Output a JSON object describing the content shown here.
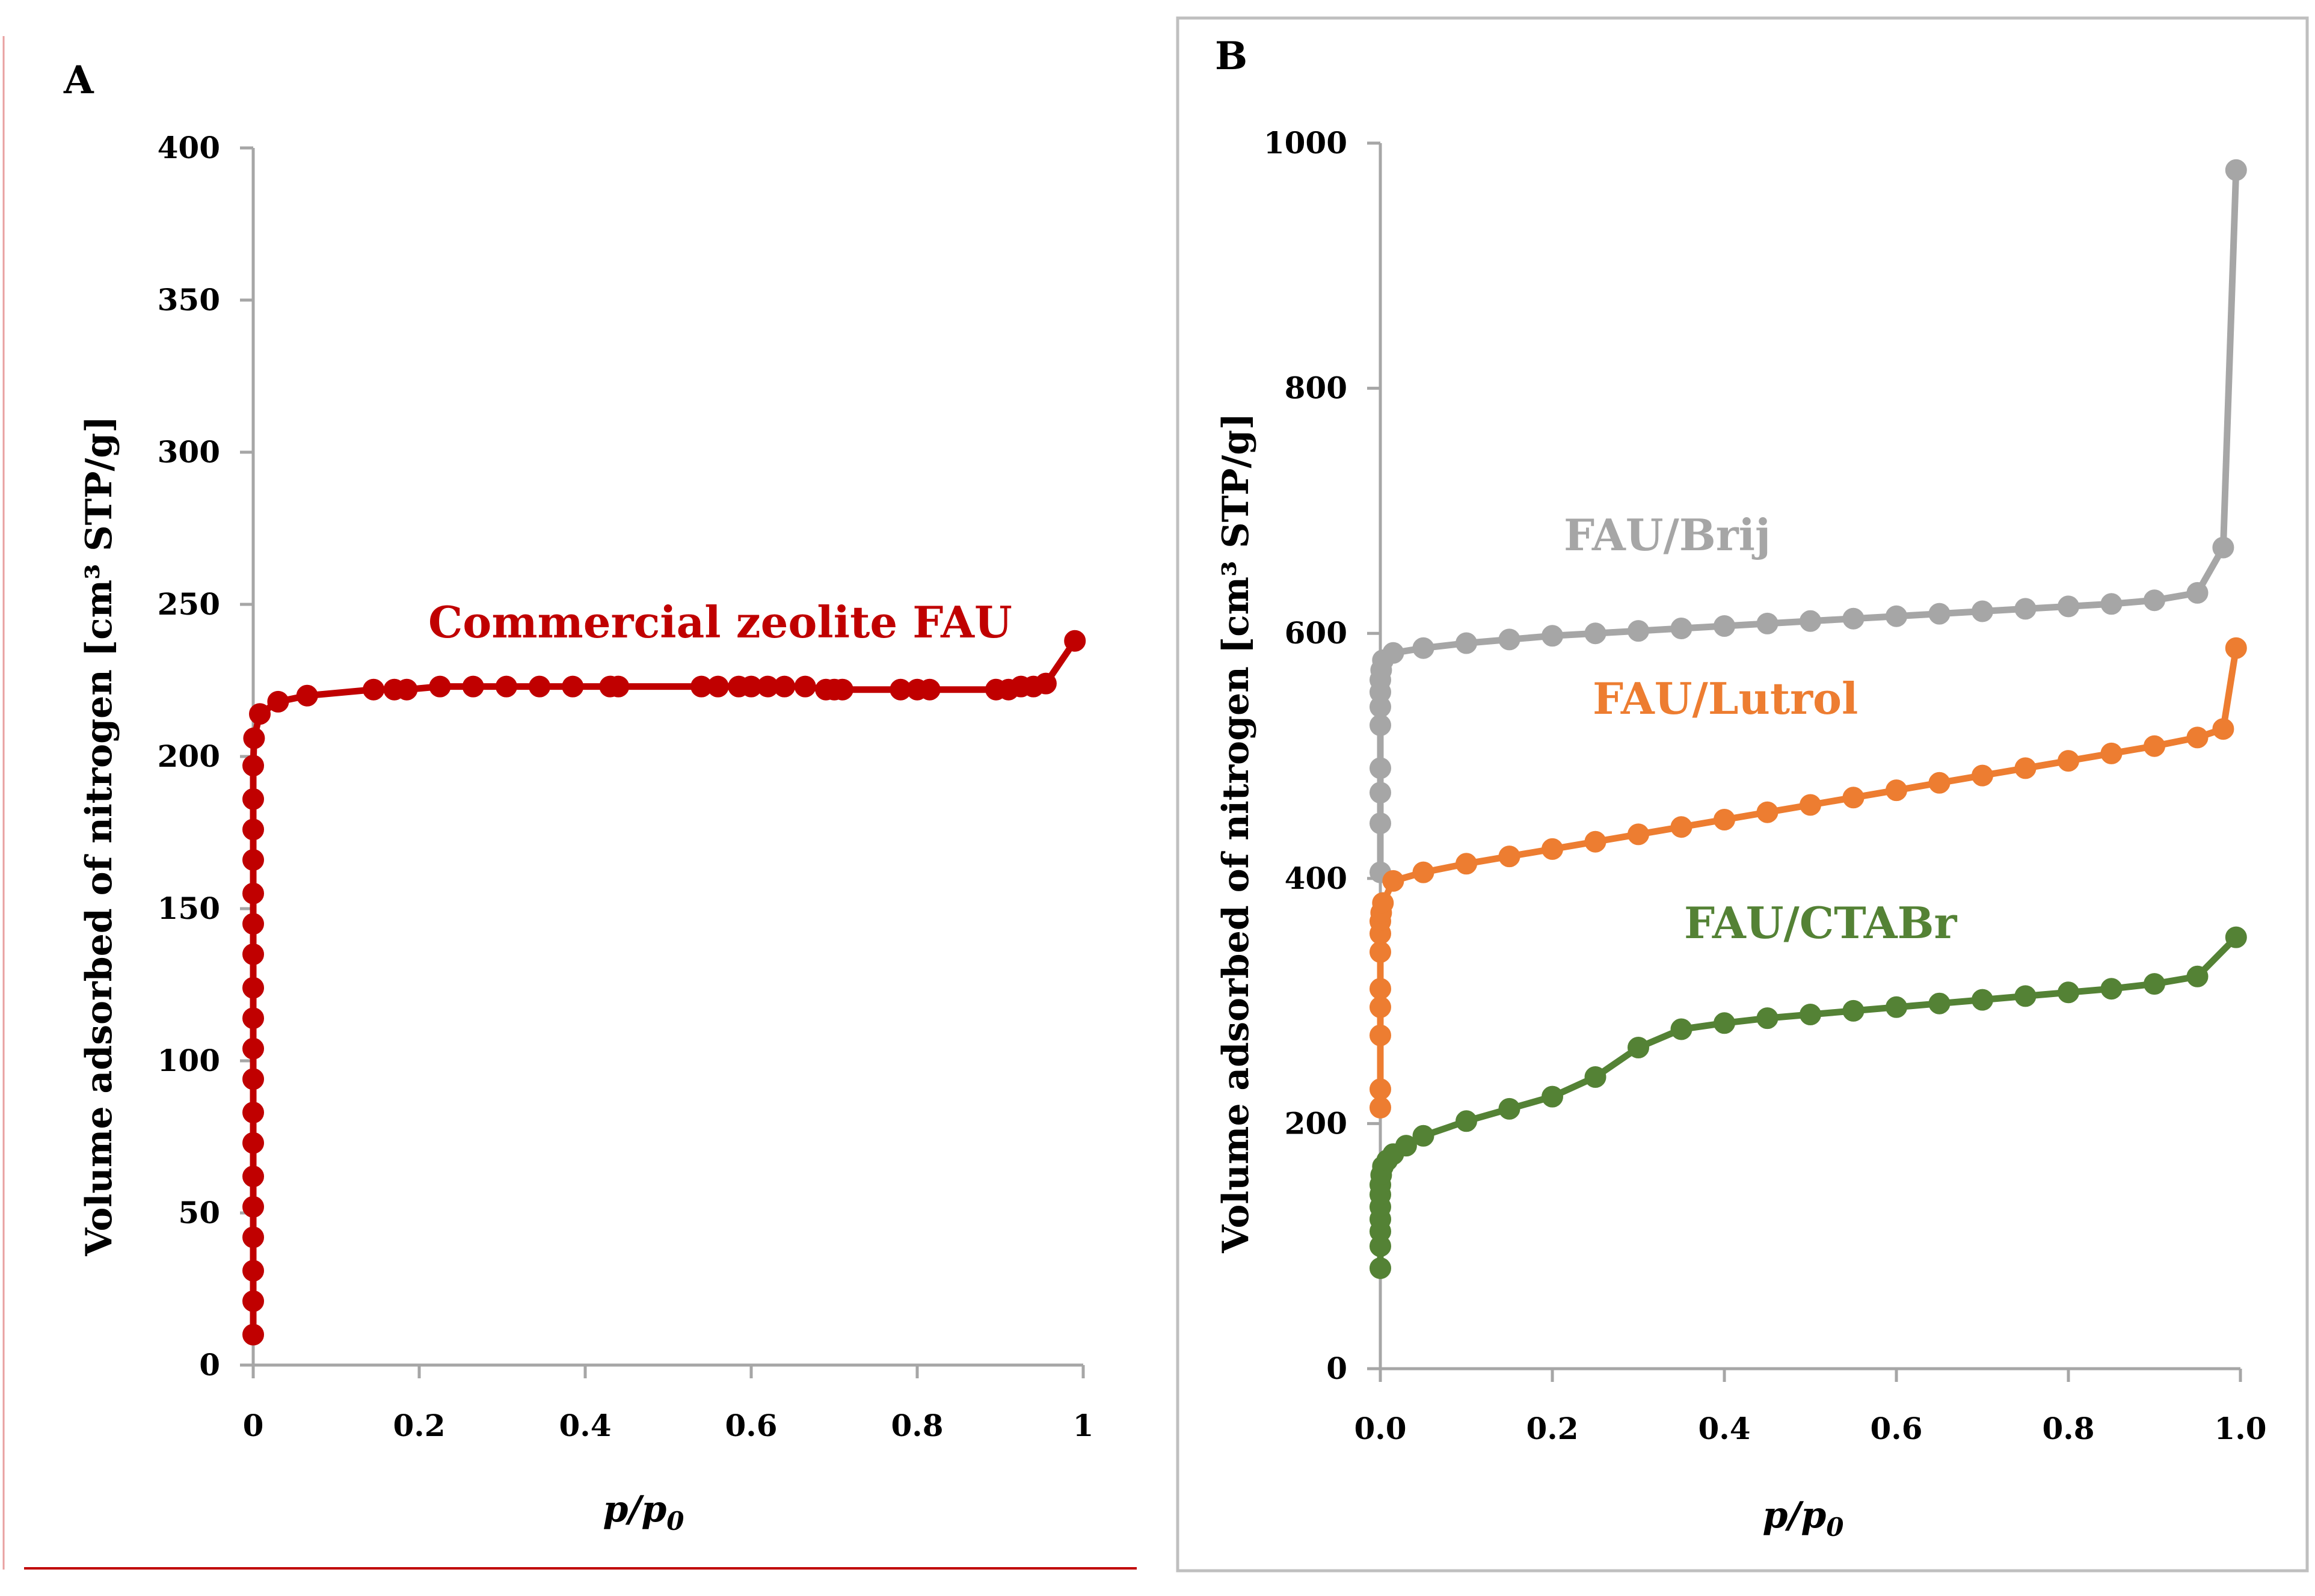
{
  "colors": {
    "red": "#c00000",
    "gray": "#a6a6a6",
    "orange": "#ed7d31",
    "green": "#548235",
    "axis": "#a6a6a6",
    "panel_b_border": "#bfbfbf"
  },
  "chart_data": [
    {
      "type": "line",
      "panel": "A",
      "title": "",
      "xlabel": "p/p0",
      "xlabel_italic": "p/p",
      "xlabel_subscript": "0",
      "ylabel": "Volume adsorbed of nitrogen  [cm³ STP/g]",
      "xlim": [
        0,
        1
      ],
      "ylim": [
        0,
        400
      ],
      "xticks": [
        0,
        0.2,
        0.4,
        0.6,
        0.8,
        1
      ],
      "xtick_labels": [
        "0",
        "0.2",
        "0.4",
        "0.6",
        "0.8",
        "1"
      ],
      "yticks": [
        0,
        50,
        100,
        150,
        200,
        250,
        300,
        350,
        400
      ],
      "ytick_labels": [
        "0",
        "50",
        "100",
        "150",
        "200",
        "250",
        "300",
        "350",
        "400"
      ],
      "series": [
        {
          "name": "Commercial zeolite FAU",
          "color": "#c00000",
          "points": [
            [
              0,
              10
            ],
            [
              0,
              21
            ],
            [
              0,
              31
            ],
            [
              0,
              42
            ],
            [
              0,
              52
            ],
            [
              0,
              62
            ],
            [
              0,
              73
            ],
            [
              0,
              83
            ],
            [
              0,
              94
            ],
            [
              0,
              104
            ],
            [
              0,
              114
            ],
            [
              0,
              124
            ],
            [
              0,
              135
            ],
            [
              0,
              145
            ],
            [
              0,
              155
            ],
            [
              0,
              166
            ],
            [
              0,
              176
            ],
            [
              0,
              186
            ],
            [
              0,
              197
            ],
            [
              0.001,
              206
            ],
            [
              0.008,
              214
            ],
            [
              0.03,
              218
            ],
            [
              0.065,
              220
            ],
            [
              0.145,
              222
            ],
            [
              0.17,
              222
            ],
            [
              0.185,
              222
            ],
            [
              0.225,
              223
            ],
            [
              0.265,
              223
            ],
            [
              0.305,
              223
            ],
            [
              0.345,
              223
            ],
            [
              0.385,
              223
            ],
            [
              0.43,
              223
            ],
            [
              0.44,
              223
            ],
            [
              0.54,
              223
            ],
            [
              0.56,
              223
            ],
            [
              0.585,
              223
            ],
            [
              0.6,
              223
            ],
            [
              0.62,
              223
            ],
            [
              0.64,
              223
            ],
            [
              0.665,
              223
            ],
            [
              0.69,
              222
            ],
            [
              0.7,
              222
            ],
            [
              0.71,
              222
            ],
            [
              0.78,
              222
            ],
            [
              0.8,
              222
            ],
            [
              0.815,
              222
            ],
            [
              0.895,
              222
            ],
            [
              0.91,
              222
            ],
            [
              0.925,
              223
            ],
            [
              0.94,
              223
            ],
            [
              0.955,
              224
            ],
            [
              0.99,
              238
            ]
          ]
        }
      ]
    },
    {
      "type": "line",
      "panel": "B",
      "title": "",
      "xlabel": "p/p0",
      "xlabel_italic": "p/p",
      "xlabel_subscript": "0",
      "ylabel": "Volume adsorbed of nitrogen  [cm³ STP/g]",
      "xlim": [
        0,
        1
      ],
      "ylim": [
        0,
        1000
      ],
      "xticks": [
        0,
        0.2,
        0.4,
        0.6,
        0.8,
        1
      ],
      "xtick_labels": [
        "0.0",
        "0.2",
        "0.4",
        "0.6",
        "0.8",
        "1.0"
      ],
      "yticks": [
        0,
        200,
        400,
        600,
        800,
        1000
      ],
      "ytick_labels": [
        "0",
        "200",
        "400",
        "600",
        "800",
        "1000"
      ],
      "series": [
        {
          "name": "FAU/Brij",
          "color": "#a6a6a6",
          "points": [
            [
              0,
              405
            ],
            [
              0,
              445
            ],
            [
              0,
              470
            ],
            [
              0,
              490
            ],
            [
              0,
              525
            ],
            [
              0,
              540
            ],
            [
              0,
              552
            ],
            [
              0,
              562
            ],
            [
              0.001,
              570
            ],
            [
              0.003,
              578
            ],
            [
              0.015,
              584
            ],
            [
              0.05,
              588
            ],
            [
              0.1,
              592
            ],
            [
              0.15,
              595
            ],
            [
              0.2,
              598
            ],
            [
              0.25,
              600
            ],
            [
              0.3,
              602
            ],
            [
              0.35,
              604
            ],
            [
              0.4,
              606
            ],
            [
              0.45,
              608
            ],
            [
              0.5,
              610
            ],
            [
              0.55,
              612
            ],
            [
              0.6,
              614
            ],
            [
              0.65,
              616
            ],
            [
              0.7,
              618
            ],
            [
              0.75,
              620
            ],
            [
              0.8,
              622
            ],
            [
              0.85,
              624
            ],
            [
              0.9,
              627
            ],
            [
              0.95,
              633
            ],
            [
              0.98,
              670
            ],
            [
              0.995,
              978
            ]
          ]
        },
        {
          "name": "FAU/Lutrol",
          "color": "#ed7d31",
          "points": [
            [
              0,
              213
            ],
            [
              0,
              228
            ],
            [
              0,
              272
            ],
            [
              0,
              295
            ],
            [
              0,
              310
            ],
            [
              0,
              340
            ],
            [
              0,
              355
            ],
            [
              0,
              365
            ],
            [
              0.001,
              372
            ],
            [
              0.003,
              380
            ],
            [
              0.015,
              398
            ],
            [
              0.05,
              405
            ],
            [
              0.1,
              412
            ],
            [
              0.15,
              418
            ],
            [
              0.2,
              424
            ],
            [
              0.25,
              430
            ],
            [
              0.3,
              436
            ],
            [
              0.35,
              442
            ],
            [
              0.4,
              448
            ],
            [
              0.45,
              454
            ],
            [
              0.5,
              460
            ],
            [
              0.55,
              466
            ],
            [
              0.6,
              472
            ],
            [
              0.65,
              478
            ],
            [
              0.7,
              484
            ],
            [
              0.75,
              490
            ],
            [
              0.8,
              496
            ],
            [
              0.85,
              502
            ],
            [
              0.9,
              508
            ],
            [
              0.95,
              515
            ],
            [
              0.98,
              522
            ],
            [
              0.995,
              588
            ]
          ]
        },
        {
          "name": "FAU/CTABr",
          "color": "#548235",
          "points": [
            [
              0,
              82
            ],
            [
              0,
              100
            ],
            [
              0,
              112
            ],
            [
              0,
              122
            ],
            [
              0,
              132
            ],
            [
              0,
              142
            ],
            [
              0,
              150
            ],
            [
              0.001,
              158
            ],
            [
              0.003,
              165
            ],
            [
              0.008,
              170
            ],
            [
              0.015,
              175
            ],
            [
              0.03,
              182
            ],
            [
              0.05,
              190
            ],
            [
              0.1,
              202
            ],
            [
              0.15,
              212
            ],
            [
              0.2,
              222
            ],
            [
              0.25,
              238
            ],
            [
              0.3,
              262
            ],
            [
              0.35,
              277
            ],
            [
              0.4,
              282
            ],
            [
              0.45,
              286
            ],
            [
              0.5,
              289
            ],
            [
              0.55,
              292
            ],
            [
              0.6,
              295
            ],
            [
              0.65,
              298
            ],
            [
              0.7,
              301
            ],
            [
              0.75,
              304
            ],
            [
              0.8,
              307
            ],
            [
              0.85,
              310
            ],
            [
              0.9,
              314
            ],
            [
              0.95,
              320
            ],
            [
              0.995,
              352
            ]
          ]
        }
      ]
    }
  ]
}
